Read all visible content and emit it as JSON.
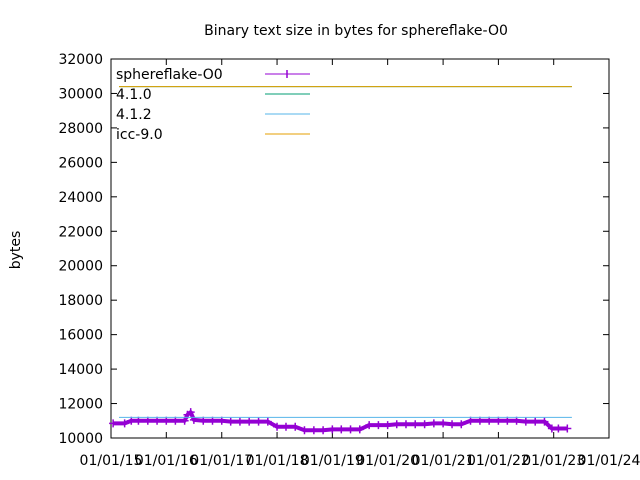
{
  "chart_data": {
    "type": "line",
    "title": "Binary text size in bytes for sphereflake-O0",
    "xlabel": "",
    "ylabel": "bytes",
    "xlim": [
      "2015-01-01",
      "2024-01-01"
    ],
    "ylim": [
      10000,
      32000
    ],
    "x_ticks": [
      "01/01/15",
      "01/01/16",
      "01/01/17",
      "01/01/18",
      "01/01/19",
      "01/01/20",
      "01/01/21",
      "01/01/22",
      "01/01/23",
      "01/01/24"
    ],
    "y_ticks": [
      "10000",
      "12000",
      "14000",
      "16000",
      "18000",
      "20000",
      "22000",
      "24000",
      "26000",
      "28000",
      "30000",
      "32000"
    ],
    "legend_position": "top-left",
    "grid": false,
    "series": [
      {
        "name": "sphereflake-O0",
        "color": "#9400d3",
        "style": "linespoints",
        "points": [
          [
            "2015-01-15",
            10850
          ],
          [
            "2015-04-01",
            10850
          ],
          [
            "2015-05-15",
            11000
          ],
          [
            "2015-07-01",
            11000
          ],
          [
            "2015-09-01",
            11000
          ],
          [
            "2015-11-01",
            11000
          ],
          [
            "2016-01-01",
            11000
          ],
          [
            "2016-03-01",
            11000
          ],
          [
            "2016-05-01",
            11000
          ],
          [
            "2016-05-20",
            11350
          ],
          [
            "2016-06-10",
            11500
          ],
          [
            "2016-07-01",
            11050
          ],
          [
            "2016-09-01",
            11000
          ],
          [
            "2016-11-01",
            11000
          ],
          [
            "2017-01-01",
            11000
          ],
          [
            "2017-03-01",
            10950
          ],
          [
            "2017-05-01",
            10950
          ],
          [
            "2017-07-01",
            10950
          ],
          [
            "2017-09-01",
            10950
          ],
          [
            "2017-11-01",
            10950
          ],
          [
            "2018-01-01",
            10650
          ],
          [
            "2018-03-01",
            10650
          ],
          [
            "2018-05-01",
            10650
          ],
          [
            "2018-07-01",
            10450
          ],
          [
            "2018-09-01",
            10450
          ],
          [
            "2018-11-01",
            10450
          ],
          [
            "2019-01-01",
            10500
          ],
          [
            "2019-03-01",
            10500
          ],
          [
            "2019-05-01",
            10500
          ],
          [
            "2019-07-01",
            10500
          ],
          [
            "2019-09-01",
            10750
          ],
          [
            "2019-11-01",
            10750
          ],
          [
            "2020-01-01",
            10750
          ],
          [
            "2020-03-01",
            10800
          ],
          [
            "2020-05-01",
            10800
          ],
          [
            "2020-07-01",
            10800
          ],
          [
            "2020-09-01",
            10800
          ],
          [
            "2020-11-01",
            10850
          ],
          [
            "2021-01-01",
            10850
          ],
          [
            "2021-03-01",
            10800
          ],
          [
            "2021-05-01",
            10800
          ],
          [
            "2021-07-01",
            11000
          ],
          [
            "2021-09-01",
            11000
          ],
          [
            "2021-11-01",
            11000
          ],
          [
            "2022-01-01",
            11000
          ],
          [
            "2022-03-01",
            11000
          ],
          [
            "2022-05-01",
            11000
          ],
          [
            "2022-07-01",
            10950
          ],
          [
            "2022-09-01",
            10950
          ],
          [
            "2022-11-01",
            10950
          ],
          [
            "2022-12-20",
            10550
          ],
          [
            "2023-02-01",
            10550
          ],
          [
            "2023-04-01",
            10550
          ]
        ]
      },
      {
        "name": "4.1.0",
        "color": "#009e73",
        "style": "hline",
        "value": 30400
      },
      {
        "name": "4.1.2",
        "color": "#56b4e9",
        "style": "hline",
        "value": 11200
      },
      {
        "name": "icc-9.0",
        "color": "#e69f00",
        "style": "hline",
        "value": 30400
      }
    ]
  }
}
